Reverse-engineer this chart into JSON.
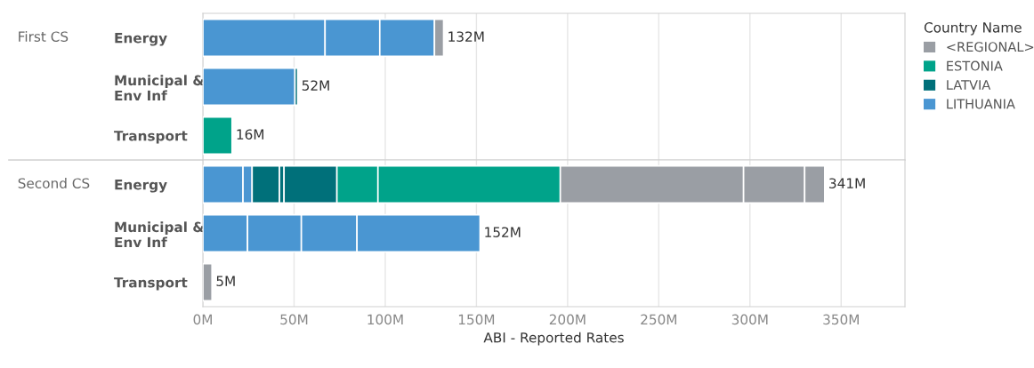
{
  "chart_data": [
    {
      "type": "bar",
      "orientation": "horizontal",
      "stacked": true,
      "categories": [
        "Energy",
        "Municipal &\nEnv Inf",
        "Transport"
      ],
      "annotations": [
        "First CS"
      ],
      "legend_title": "Country Name",
      "legend": "top right",
      "grid": "x",
      "tick_labels": "y",
      "xlim": [
        0,
        385
      ],
      "totals": [
        "132M",
        "52M",
        "16M"
      ],
      "series": [
        {
          "name": "LITHUANIA",
          "color": "#4a96d2",
          "values": [
            67,
            50.5,
            null
          ]
        },
        {
          "color": "#4a96d2",
          "values": [
            30,
            null,
            null
          ]
        },
        {
          "color": "#4a96d2",
          "values": [
            30,
            null,
            null
          ]
        },
        {
          "name": "LATVIA",
          "color": "#00707a",
          "values": [
            null,
            1.5,
            null
          ]
        },
        {
          "name": "ESTONIA",
          "color": "#00a38a",
          "values": [
            null,
            null,
            16
          ]
        },
        {
          "name": "<REGIONAL>",
          "color": "#9a9ea4",
          "values": [
            5,
            null,
            null
          ]
        }
      ]
    },
    {
      "type": "bar",
      "orientation": "horizontal",
      "stacked": true,
      "categories": [
        "Energy",
        "Municipal &\nEnv Inf",
        "Transport"
      ],
      "annotations": [
        "Second CS"
      ],
      "xlabel": "ABI - Reported Rates",
      "grid": "x",
      "xlim": [
        0,
        385
      ],
      "xticks": [
        {
          "value": 0,
          "label": "0M"
        },
        {
          "value": 50,
          "label": "50M"
        },
        {
          "value": 100,
          "label": "100M"
        },
        {
          "value": 150,
          "label": "150M"
        },
        {
          "value": 200,
          "label": "200M"
        },
        {
          "value": 250,
          "label": "250M"
        },
        {
          "value": 300,
          "label": "300M"
        },
        {
          "value": 350,
          "label": "350M"
        }
      ],
      "totals": [
        "341M",
        "152M",
        "5M"
      ],
      "series": [
        {
          "color": "#4a96d2",
          "values": [
            22,
            24.5,
            null
          ]
        },
        {
          "color": "#4a96d2",
          "values": [
            5,
            29.5,
            null
          ]
        },
        {
          "color": "#4a96d2",
          "values": [
            null,
            30.5,
            null
          ]
        },
        {
          "color": "#4a96d2",
          "values": [
            null,
            67.5,
            null
          ]
        },
        {
          "color": "#00707a",
          "values": [
            15,
            null,
            null
          ]
        },
        {
          "color": "#00707a",
          "values": [
            2.5,
            null,
            null
          ]
        },
        {
          "color": "#00707a",
          "values": [
            29,
            null,
            null
          ]
        },
        {
          "color": "#00a38a",
          "values": [
            22.5,
            null,
            null
          ]
        },
        {
          "color": "#00a38a",
          "values": [
            100,
            null,
            null
          ]
        },
        {
          "color": "#9a9ea4",
          "values": [
            100.5,
            null,
            5
          ]
        },
        {
          "color": "#9a9ea4",
          "values": [
            33.5,
            null,
            null
          ]
        },
        {
          "color": "#9a9ea4",
          "values": [
            11,
            null,
            null
          ]
        }
      ]
    }
  ]
}
